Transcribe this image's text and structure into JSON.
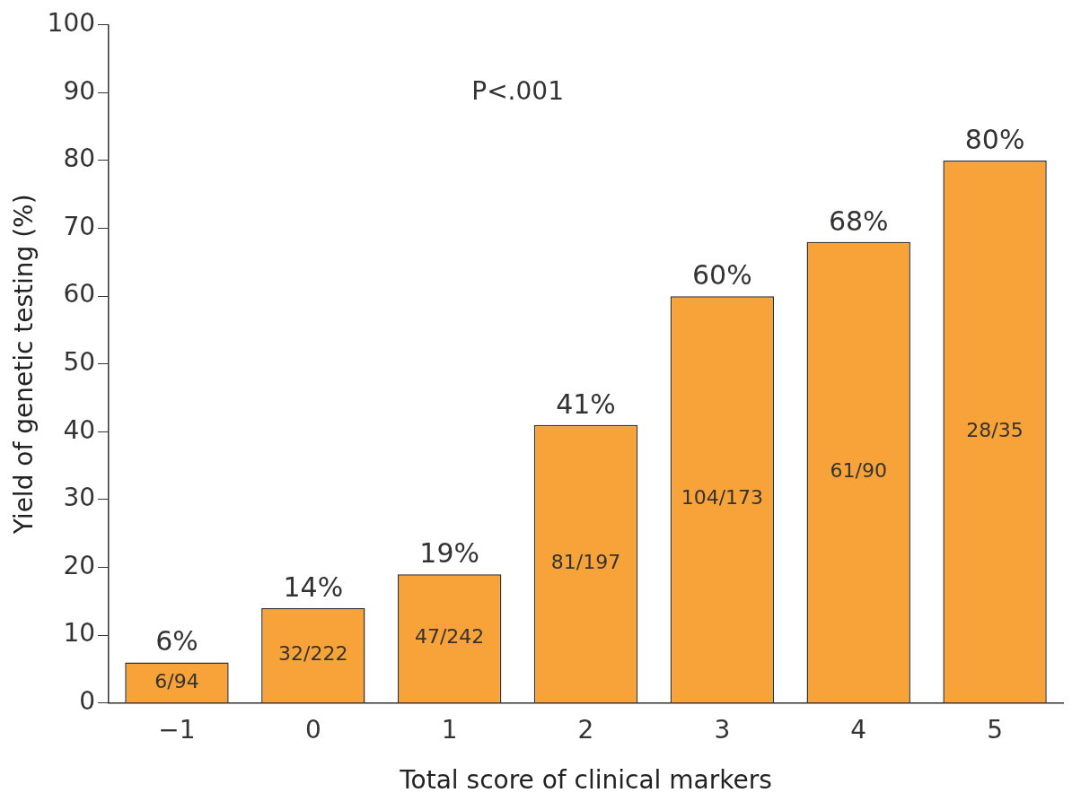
{
  "chart_data": {
    "type": "bar",
    "xlabel": "Total score of clinical markers",
    "ylabel": "Yield of genetic testing (%)",
    "categories": [
      "−1",
      "0",
      "1",
      "2",
      "3",
      "4",
      "5"
    ],
    "values": [
      6,
      14,
      19,
      41,
      60,
      68,
      80
    ],
    "value_labels": [
      "6%",
      "14%",
      "19%",
      "41%",
      "60%",
      "68%",
      "80%"
    ],
    "color": "#f7a33a",
    "ylim": [
      0,
      100
    ],
    "yticks": [
      0,
      10,
      20,
      30,
      40,
      50,
      60,
      70,
      80,
      90,
      100
    ],
    "grid": false,
    "legend": false,
    "annotations": [
      "P<.001",
      "6/94",
      "32/222",
      "47/242",
      "81/197",
      "104/173",
      "61/90",
      "28/35"
    ]
  }
}
